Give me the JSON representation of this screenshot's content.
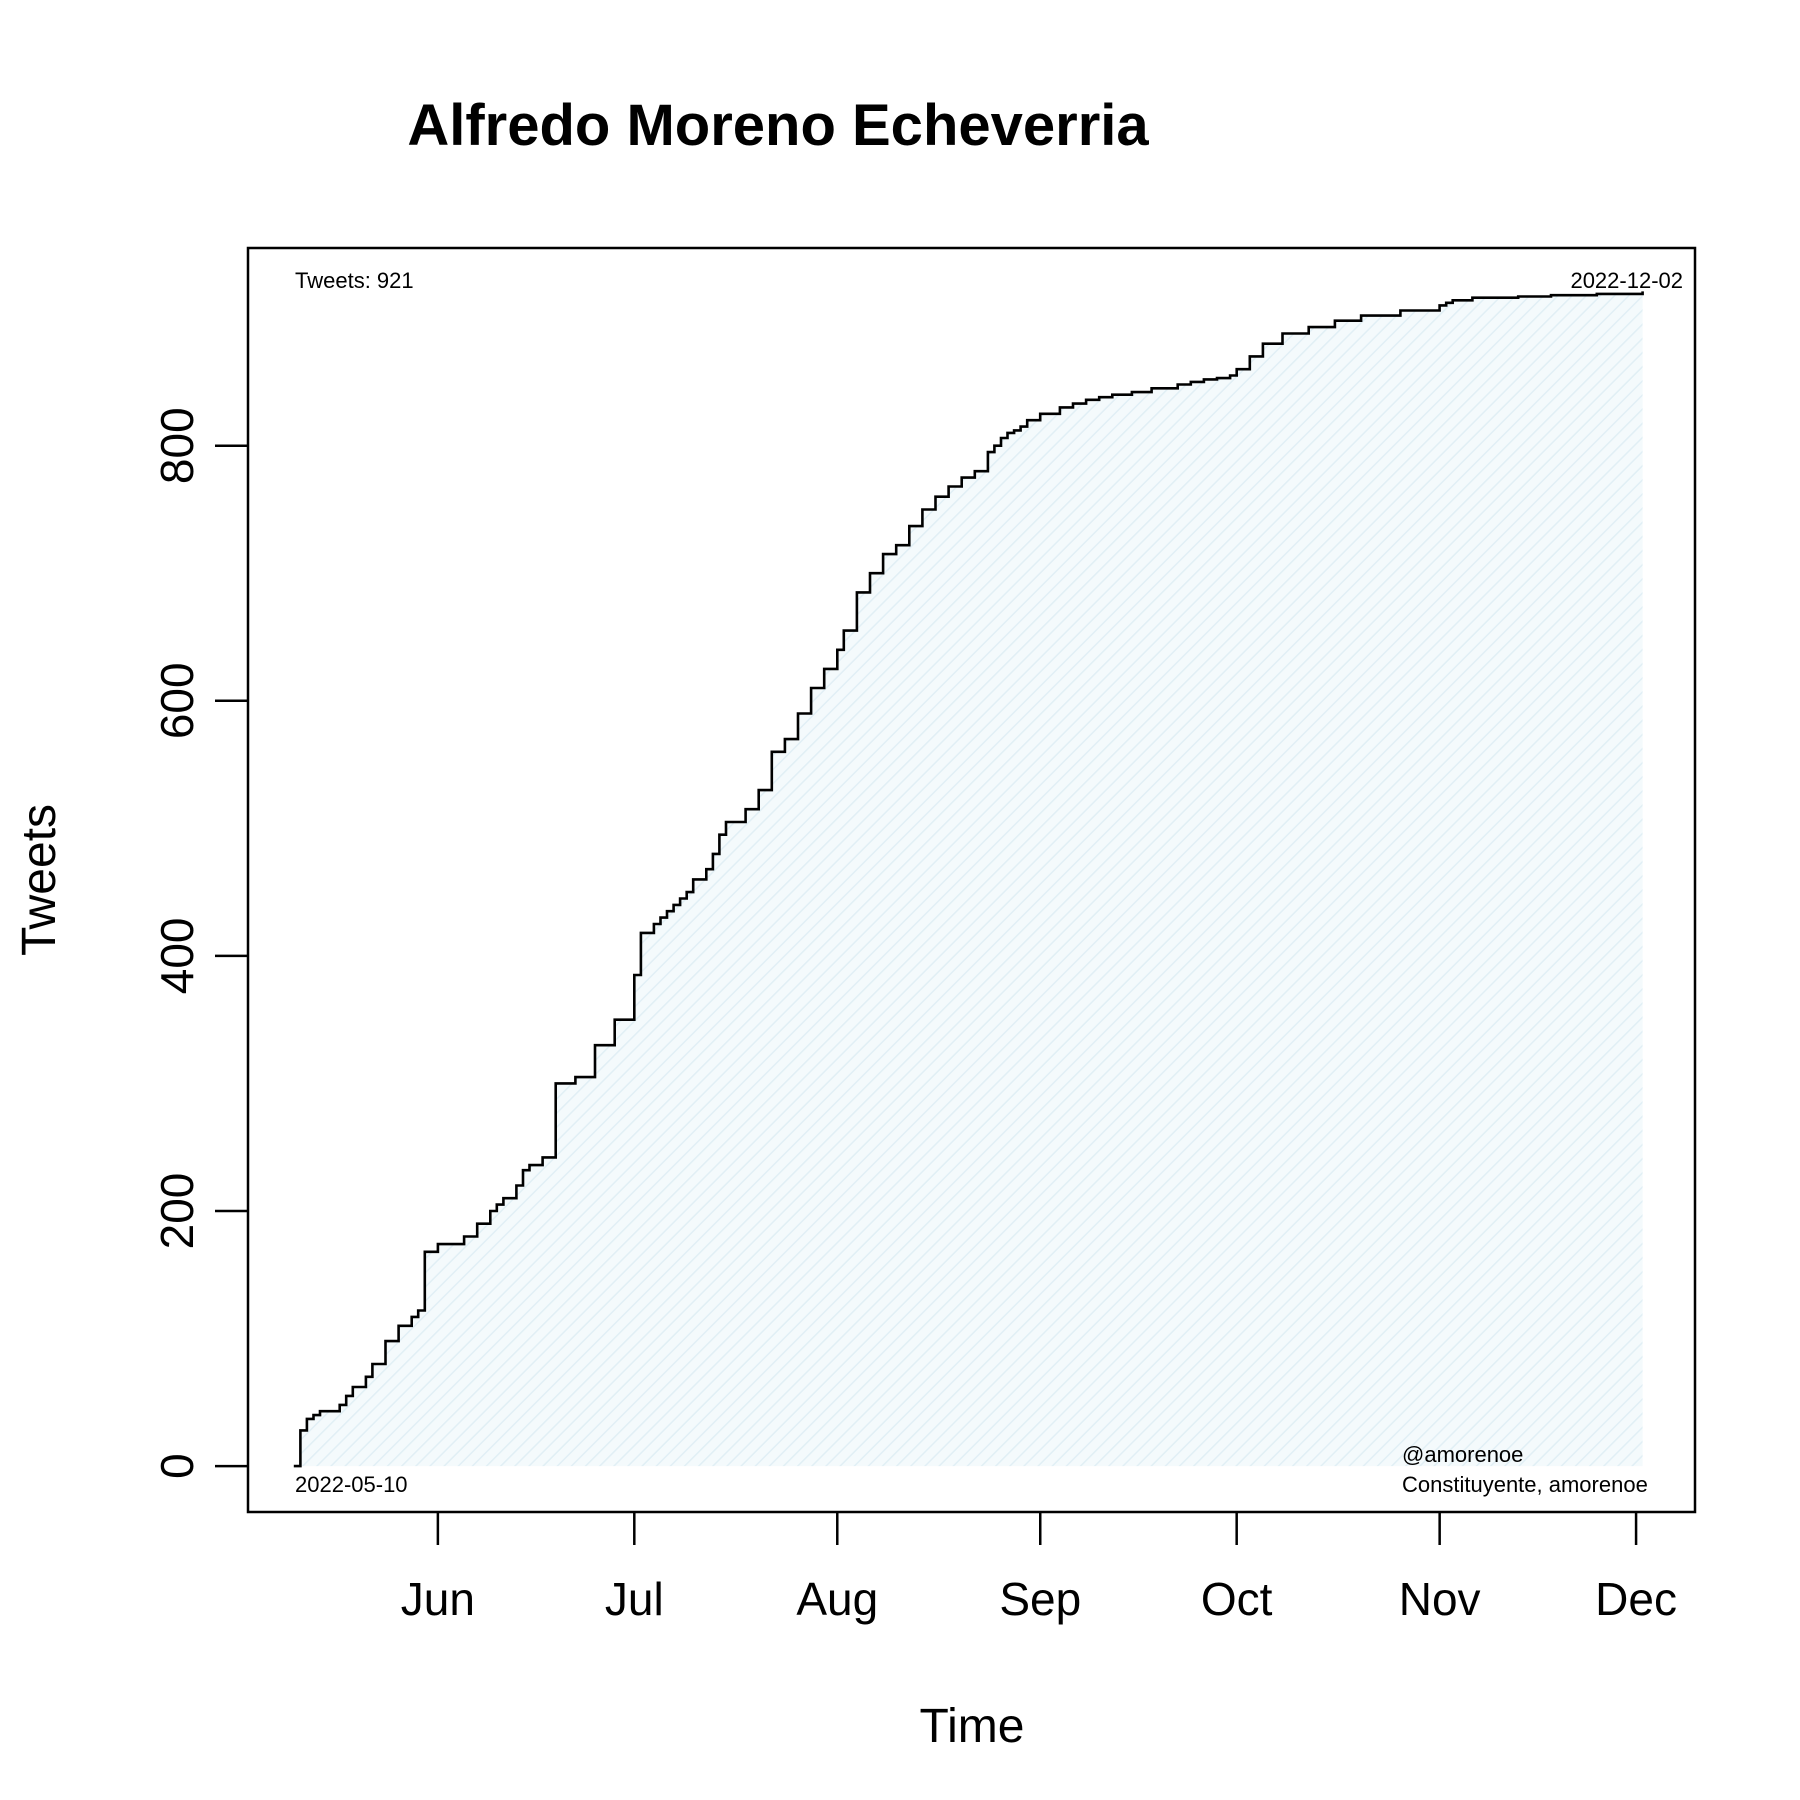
{
  "chart_data": {
    "type": "line",
    "title": "Alfredo Moreno Echeverria",
    "xlabel": "Time",
    "ylabel": "Tweets",
    "x_ticks": [
      "Jun",
      "Jul",
      "Aug",
      "Sep",
      "Oct",
      "Nov",
      "Dec"
    ],
    "x_tick_dates": [
      "2022-06-01",
      "2022-07-01",
      "2022-08-01",
      "2022-09-01",
      "2022-10-01",
      "2022-11-01",
      "2022-12-01"
    ],
    "y_ticks": [
      0,
      200,
      400,
      600,
      800
    ],
    "xlim": [
      "2022-05-03",
      "2022-12-10"
    ],
    "ylim": [
      -36,
      955
    ],
    "step": true,
    "fill_color": "#e6f3f8",
    "line_color": "#000000",
    "series": [
      {
        "x": [
          "2022-05-10",
          "2022-05-11",
          "2022-05-12",
          "2022-05-13",
          "2022-05-14",
          "2022-05-17",
          "2022-05-18",
          "2022-05-19",
          "2022-05-21",
          "2022-05-22",
          "2022-05-24",
          "2022-05-26",
          "2022-05-28",
          "2022-05-29",
          "2022-05-30",
          "2022-06-01",
          "2022-06-05",
          "2022-06-07",
          "2022-06-09",
          "2022-06-10",
          "2022-06-11",
          "2022-06-13",
          "2022-06-14",
          "2022-06-15",
          "2022-06-17",
          "2022-06-19",
          "2022-06-22",
          "2022-06-25",
          "2022-06-28",
          "2022-07-01",
          "2022-07-02",
          "2022-07-04",
          "2022-07-05",
          "2022-07-06",
          "2022-07-07",
          "2022-07-08",
          "2022-07-09",
          "2022-07-10",
          "2022-07-12",
          "2022-07-13",
          "2022-07-14",
          "2022-07-15",
          "2022-07-18",
          "2022-07-20",
          "2022-07-22",
          "2022-07-24",
          "2022-07-26",
          "2022-07-28",
          "2022-07-30",
          "2022-08-01",
          "2022-08-02",
          "2022-08-04",
          "2022-08-06",
          "2022-08-08",
          "2022-08-10",
          "2022-08-12",
          "2022-08-14",
          "2022-08-16",
          "2022-08-18",
          "2022-08-20",
          "2022-08-22",
          "2022-08-24",
          "2022-08-25",
          "2022-08-26",
          "2022-08-27",
          "2022-08-28",
          "2022-08-29",
          "2022-08-30",
          "2022-09-01",
          "2022-09-04",
          "2022-09-06",
          "2022-09-08",
          "2022-09-10",
          "2022-09-12",
          "2022-09-15",
          "2022-09-18",
          "2022-09-22",
          "2022-09-24",
          "2022-09-26",
          "2022-09-28",
          "2022-09-30",
          "2022-10-01",
          "2022-10-03",
          "2022-10-05",
          "2022-10-08",
          "2022-10-12",
          "2022-10-16",
          "2022-10-20",
          "2022-10-26",
          "2022-11-01",
          "2022-11-02",
          "2022-11-03",
          "2022-11-06",
          "2022-11-13",
          "2022-11-18",
          "2022-11-25",
          "2022-12-02"
        ],
        "y": [
          0,
          28,
          37,
          40,
          43,
          48,
          55,
          62,
          70,
          80,
          98,
          110,
          117,
          122,
          168,
          174,
          180,
          190,
          200,
          205,
          210,
          220,
          232,
          236,
          242,
          300,
          305,
          330,
          350,
          385,
          418,
          425,
          430,
          435,
          440,
          445,
          450,
          460,
          468,
          480,
          495,
          505,
          515,
          530,
          560,
          570,
          590,
          610,
          625,
          640,
          655,
          685,
          700,
          715,
          722,
          737,
          750,
          760,
          768,
          775,
          780,
          795,
          800,
          806,
          810,
          812,
          815,
          820,
          825,
          830,
          833,
          836,
          838,
          840,
          842,
          845,
          848,
          850,
          852,
          853,
          855,
          860,
          870,
          880,
          888,
          893,
          898,
          902,
          906,
          910,
          912,
          914,
          916,
          917,
          918,
          919,
          921
        ]
      }
    ]
  },
  "annotations": {
    "count": "Tweets: 921",
    "end_date": "2022-12-02",
    "start_date": "2022-05-10",
    "handle": "@amorenoe",
    "description": "Constituyente, amorenoe"
  }
}
